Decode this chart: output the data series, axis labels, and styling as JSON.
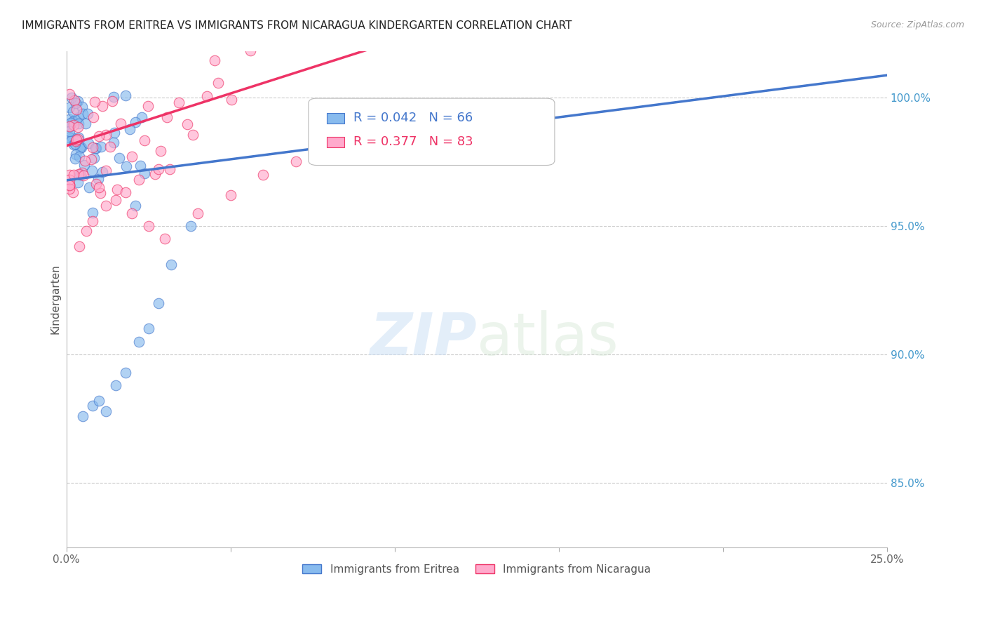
{
  "title": "IMMIGRANTS FROM ERITREA VS IMMIGRANTS FROM NICARAGUA KINDERGARTEN CORRELATION CHART",
  "source": "Source: ZipAtlas.com",
  "ylabel": "Kindergarten",
  "xlim": [
    0.0,
    0.25
  ],
  "ylim": [
    0.825,
    1.018
  ],
  "legend_eritrea": "Immigrants from Eritrea",
  "legend_nicaragua": "Immigrants from Nicaragua",
  "R_eritrea": 0.042,
  "N_eritrea": 66,
  "R_nicaragua": 0.377,
  "N_nicaragua": 83,
  "color_eritrea": "#88BBEE",
  "color_nicaragua": "#FFAACC",
  "trendline_eritrea_color": "#4477CC",
  "trendline_nicaragua_color": "#EE3366",
  "trendline_eritrea_dashed_color": "#6699CC"
}
